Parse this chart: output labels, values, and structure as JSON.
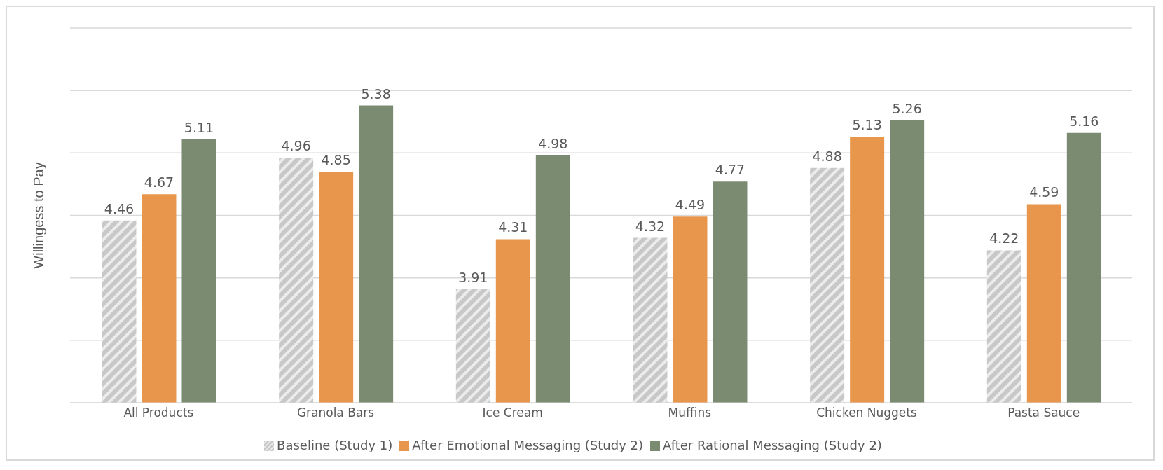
{
  "chart_data": {
    "type": "bar",
    "ylabel": "Willingess to Pay",
    "categories": [
      "All Products",
      "Granola Bars",
      "Ice Cream",
      "Muffins",
      "Chicken Nuggets",
      "Pasta Sauce"
    ],
    "series": [
      {
        "name": "Baseline (Study 1)",
        "color": "#c8c8c8",
        "values": [
          4.46,
          4.96,
          3.91,
          4.32,
          4.88,
          4.22
        ]
      },
      {
        "name": "After Emotional Messaging (Study 2)",
        "color": "#e8964c",
        "values": [
          4.67,
          4.85,
          4.31,
          4.49,
          5.13,
          4.59
        ]
      },
      {
        "name": "After Rational Messaging (Study 2)",
        "color": "#7b8b71",
        "values": [
          5.11,
          5.38,
          4.98,
          4.77,
          5.26,
          5.16
        ]
      }
    ],
    "ylim": [
      3,
      6
    ],
    "yticks": [
      {
        "value": 3,
        "label": null
      },
      {
        "value": 3.5,
        "label": null
      },
      {
        "value": 4,
        "label": null
      },
      {
        "value": 4.5,
        "label": null
      },
      {
        "value": 5,
        "label": null
      },
      {
        "value": 5.5,
        "label": null
      },
      {
        "value": 6,
        "label": null
      }
    ],
    "tick_labels": "x",
    "grid": "y",
    "legend": "bottom",
    "data_labels": true
  }
}
